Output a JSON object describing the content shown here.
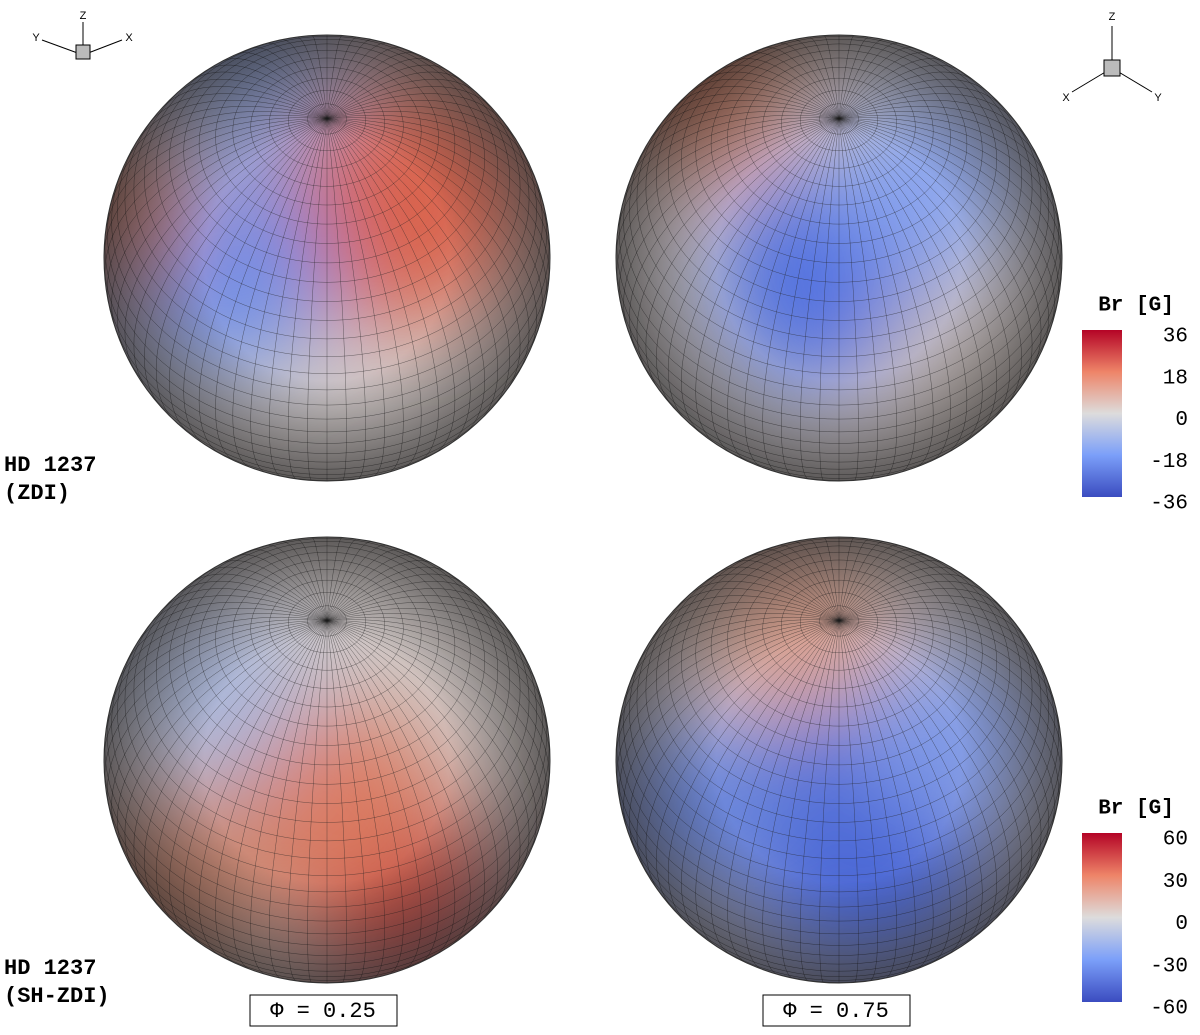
{
  "rows": [
    {
      "label": [
        "HD 1237",
        "(ZDI)"
      ],
      "colorbar": {
        "title": "Br [G]",
        "ticks": [
          36,
          18,
          0,
          -18,
          -36
        ]
      }
    },
    {
      "label": [
        "HD 1237",
        "(SH-ZDI)"
      ],
      "colorbar": {
        "title": "Br [G]",
        "ticks": [
          60,
          30,
          0,
          -30,
          -60
        ]
      }
    }
  ],
  "phases": [
    "Φ = 0.25",
    "Φ = 0.75"
  ],
  "axes_left": {
    "z": "Z",
    "y": "Y",
    "x": "X"
  },
  "axes_right": {
    "z": "Z",
    "x": "X",
    "y": "Y"
  }
}
